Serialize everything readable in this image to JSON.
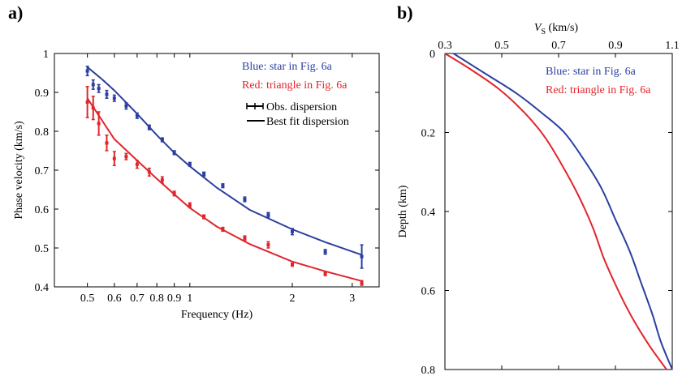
{
  "chart_data": [
    {
      "panel": "a)",
      "type": "scatter",
      "xscale": "log",
      "xlabel": "Frequency (Hz)",
      "ylabel": "Phase velocity (km/s)",
      "xlim": [
        0.4,
        3.6
      ],
      "ylim": [
        0.4,
        1.0
      ],
      "xticks": [
        0.5,
        0.6,
        0.7,
        0.8,
        0.9,
        1,
        2,
        3
      ],
      "xtick_labels": [
        "0.5",
        "0.6",
        "0.7",
        "0.8",
        "0.9",
        "1",
        "2",
        "3"
      ],
      "yticks": [
        0.4,
        0.5,
        0.6,
        0.7,
        0.8,
        0.9,
        1.0
      ],
      "ytick_labels": [
        "0.4",
        "0.5",
        "0.6",
        "0.7",
        "0.8",
        "0.9",
        "1"
      ],
      "legend_text": [
        "Blue: star in Fig. 6a",
        "Red: triangle in Fig. 6a"
      ],
      "legend_items": [
        "Obs. dispersion",
        "Best fit dispersion"
      ],
      "series": [
        {
          "color": "#2b3fa0",
          "obs_x": [
            0.5,
            0.52,
            0.54,
            0.57,
            0.6,
            0.65,
            0.7,
            0.76,
            0.83,
            0.9,
            1.0,
            1.1,
            1.25,
            1.45,
            1.7,
            2.0,
            2.5,
            3.2
          ],
          "obs_y": [
            0.955,
            0.92,
            0.91,
            0.895,
            0.885,
            0.865,
            0.84,
            0.81,
            0.778,
            0.745,
            0.715,
            0.69,
            0.66,
            0.625,
            0.585,
            0.542,
            0.49,
            0.478
          ],
          "obs_err": [
            0.012,
            0.012,
            0.01,
            0.01,
            0.008,
            0.008,
            0.007,
            0.006,
            0.005,
            0.005,
            0.005,
            0.005,
            0.005,
            0.006,
            0.006,
            0.008,
            0.006,
            0.03
          ],
          "fit_x": [
            0.5,
            0.55,
            0.6,
            0.7,
            0.8,
            0.9,
            1.0,
            1.2,
            1.5,
            2.0,
            2.5,
            3.2
          ],
          "fit_y": [
            0.965,
            0.935,
            0.905,
            0.845,
            0.79,
            0.745,
            0.71,
            0.655,
            0.598,
            0.548,
            0.515,
            0.482
          ]
        },
        {
          "color": "#e0262b",
          "obs_x": [
            0.5,
            0.52,
            0.54,
            0.57,
            0.6,
            0.65,
            0.7,
            0.76,
            0.83,
            0.9,
            1.0,
            1.1,
            1.25,
            1.45,
            1.7,
            2.0,
            2.5,
            3.2
          ],
          "obs_y": [
            0.875,
            0.86,
            0.82,
            0.77,
            0.73,
            0.735,
            0.715,
            0.695,
            0.675,
            0.64,
            0.61,
            0.58,
            0.548,
            0.525,
            0.508,
            0.457,
            0.433,
            0.41
          ],
          "obs_err": [
            0.04,
            0.03,
            0.03,
            0.02,
            0.018,
            0.008,
            0.01,
            0.01,
            0.008,
            0.006,
            0.006,
            0.005,
            0.005,
            0.006,
            0.008,
            0.004,
            0.004,
            0.006
          ],
          "fit_x": [
            0.5,
            0.55,
            0.6,
            0.7,
            0.8,
            0.9,
            1.0,
            1.2,
            1.5,
            2.0,
            2.5,
            3.2
          ],
          "fit_y": [
            0.885,
            0.83,
            0.78,
            0.725,
            0.678,
            0.638,
            0.603,
            0.555,
            0.51,
            0.465,
            0.44,
            0.415
          ]
        }
      ]
    },
    {
      "panel": "b)",
      "type": "line",
      "xlabel_main": "V",
      "xlabel_sub": "S",
      "xlabel_unit": " (km/s)",
      "ylabel": "Depth (km)",
      "xlim": [
        0.3,
        1.1
      ],
      "ylim": [
        0,
        0.8
      ],
      "xticks": [
        0.3,
        0.5,
        0.7,
        0.9,
        1.1
      ],
      "xtick_labels": [
        "0.3",
        "0.5",
        "0.7",
        "0.9",
        "1.1"
      ],
      "yticks": [
        0,
        0.2,
        0.4,
        0.6,
        0.8
      ],
      "ytick_labels": [
        "0",
        "0.2",
        "0.4",
        "0.6",
        "0.8"
      ],
      "legend_text": [
        "Blue: star in Fig. 6a",
        "Red: triangle in Fig. 6a"
      ],
      "series": [
        {
          "color": "#2b3fa0",
          "vs": [
            0.33,
            0.44,
            0.55,
            0.64,
            0.72,
            0.79,
            0.85,
            0.9,
            0.95,
            0.99,
            1.03,
            1.06,
            1.1
          ],
          "depth": [
            0.0,
            0.05,
            0.1,
            0.15,
            0.2,
            0.27,
            0.34,
            0.42,
            0.5,
            0.58,
            0.66,
            0.73,
            0.8
          ]
        },
        {
          "color": "#e0262b",
          "vs": [
            0.3,
            0.39,
            0.49,
            0.58,
            0.65,
            0.71,
            0.77,
            0.82,
            0.86,
            0.91,
            0.96,
            1.02,
            1.08
          ],
          "depth": [
            0.0,
            0.04,
            0.09,
            0.15,
            0.21,
            0.28,
            0.36,
            0.44,
            0.52,
            0.6,
            0.67,
            0.74,
            0.8
          ]
        }
      ]
    }
  ]
}
